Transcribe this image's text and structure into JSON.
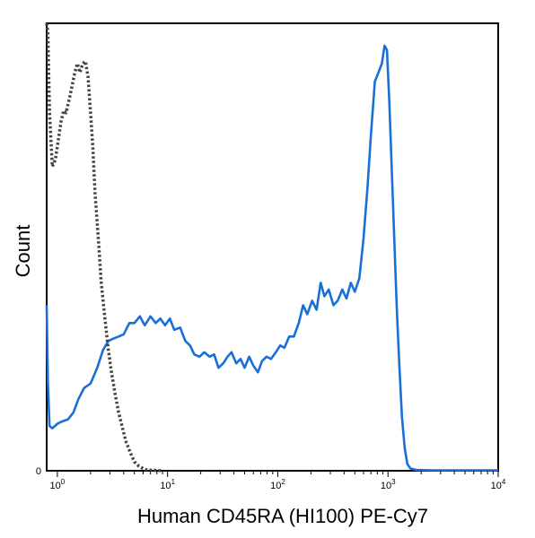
{
  "chart_data": {
    "type": "line",
    "title": "",
    "xlabel": "Human CD45RA (HI100) PE-Cy7",
    "ylabel": "Count",
    "x_scale": "log",
    "xlim": [
      0.8,
      10000
    ],
    "ylim": [
      0,
      100
    ],
    "x_ticks": [
      {
        "base": "10",
        "exp": "0",
        "value": 1
      },
      {
        "base": "10",
        "exp": "1",
        "value": 10
      },
      {
        "base": "10",
        "exp": "2",
        "value": 100
      },
      {
        "base": "10",
        "exp": "3",
        "value": 1000
      },
      {
        "base": "10",
        "exp": "4",
        "value": 10000
      }
    ],
    "y_ticks": [
      {
        "label": "0",
        "value": 0
      }
    ],
    "grid": false,
    "legend": "none",
    "series": [
      {
        "color": "#1a6fd6",
        "dash": "solid",
        "points": [
          [
            0.8,
            37
          ],
          [
            0.82,
            20
          ],
          [
            0.85,
            10
          ],
          [
            0.9,
            9.5
          ],
          [
            1.0,
            10.5
          ],
          [
            1.1,
            11
          ],
          [
            1.25,
            11.5
          ],
          [
            1.4,
            13
          ],
          [
            1.55,
            16
          ],
          [
            1.75,
            18.5
          ],
          [
            2.0,
            19.5
          ],
          [
            2.3,
            23
          ],
          [
            2.6,
            27
          ],
          [
            2.9,
            29
          ],
          [
            3.2,
            29.5
          ],
          [
            3.6,
            30
          ],
          [
            4.0,
            30.5
          ],
          [
            4.5,
            33
          ],
          [
            5.0,
            33
          ],
          [
            5.6,
            34.5
          ],
          [
            6.2,
            32.5
          ],
          [
            7.0,
            34.5
          ],
          [
            7.8,
            33
          ],
          [
            8.6,
            34
          ],
          [
            9.5,
            32.5
          ],
          [
            10.5,
            34
          ],
          [
            11.5,
            31.5
          ],
          [
            13,
            32
          ],
          [
            14.5,
            29
          ],
          [
            16,
            28
          ],
          [
            17.5,
            26
          ],
          [
            19.5,
            25.5
          ],
          [
            21.5,
            26.5
          ],
          [
            24,
            25.5
          ],
          [
            26.5,
            26
          ],
          [
            29,
            23
          ],
          [
            32,
            24
          ],
          [
            35,
            25.5
          ],
          [
            38,
            26.5
          ],
          [
            42,
            24
          ],
          [
            46,
            25
          ],
          [
            50,
            23
          ],
          [
            55,
            25.5
          ],
          [
            60,
            23.5
          ],
          [
            66,
            22
          ],
          [
            72,
            24.5
          ],
          [
            79,
            25.5
          ],
          [
            87,
            25
          ],
          [
            96,
            26.5
          ],
          [
            105,
            28
          ],
          [
            115,
            27.5
          ],
          [
            127,
            30
          ],
          [
            140,
            30
          ],
          [
            155,
            33
          ],
          [
            170,
            37
          ],
          [
            185,
            35
          ],
          [
            205,
            38
          ],
          [
            225,
            36
          ],
          [
            245,
            42
          ],
          [
            265,
            39
          ],
          [
            290,
            40.5
          ],
          [
            320,
            37
          ],
          [
            350,
            38
          ],
          [
            385,
            40.5
          ],
          [
            420,
            38.5
          ],
          [
            460,
            42
          ],
          [
            500,
            40
          ],
          [
            550,
            43
          ],
          [
            600,
            52
          ],
          [
            650,
            63
          ],
          [
            700,
            75
          ],
          [
            760,
            87
          ],
          [
            820,
            89
          ],
          [
            880,
            91
          ],
          [
            930,
            95
          ],
          [
            980,
            94
          ],
          [
            1030,
            82
          ],
          [
            1080,
            68
          ],
          [
            1140,
            52
          ],
          [
            1200,
            37
          ],
          [
            1270,
            23
          ],
          [
            1340,
            12
          ],
          [
            1420,
            5
          ],
          [
            1500,
            1.5
          ],
          [
            1600,
            0.5
          ],
          [
            1800,
            0.2
          ],
          [
            2500,
            0.1
          ],
          [
            5000,
            0.1
          ],
          [
            10000,
            0.1
          ]
        ]
      },
      {
        "color": "#444444",
        "dash": "dotted",
        "points": [
          [
            0.8,
            100
          ],
          [
            0.82,
            98
          ],
          [
            0.85,
            80
          ],
          [
            0.9,
            68
          ],
          [
            0.96,
            69.5
          ],
          [
            1.02,
            74
          ],
          [
            1.08,
            78
          ],
          [
            1.14,
            80.5
          ],
          [
            1.2,
            80
          ],
          [
            1.28,
            83
          ],
          [
            1.36,
            86
          ],
          [
            1.44,
            89
          ],
          [
            1.52,
            91
          ],
          [
            1.6,
            89
          ],
          [
            1.7,
            91
          ],
          [
            1.8,
            91.5
          ],
          [
            1.9,
            88
          ],
          [
            2.0,
            80
          ],
          [
            2.1,
            72
          ],
          [
            2.2,
            62
          ],
          [
            2.35,
            52
          ],
          [
            2.5,
            42
          ],
          [
            2.7,
            34
          ],
          [
            2.9,
            27
          ],
          [
            3.1,
            22
          ],
          [
            3.35,
            17
          ],
          [
            3.6,
            13
          ],
          [
            3.9,
            9.5
          ],
          [
            4.2,
            6.5
          ],
          [
            4.6,
            4
          ],
          [
            5.0,
            2
          ],
          [
            5.5,
            1
          ],
          [
            6.0,
            0.5
          ],
          [
            6.5,
            0.2
          ],
          [
            7.5,
            0.1
          ],
          [
            9.0,
            0
          ]
        ]
      }
    ]
  }
}
